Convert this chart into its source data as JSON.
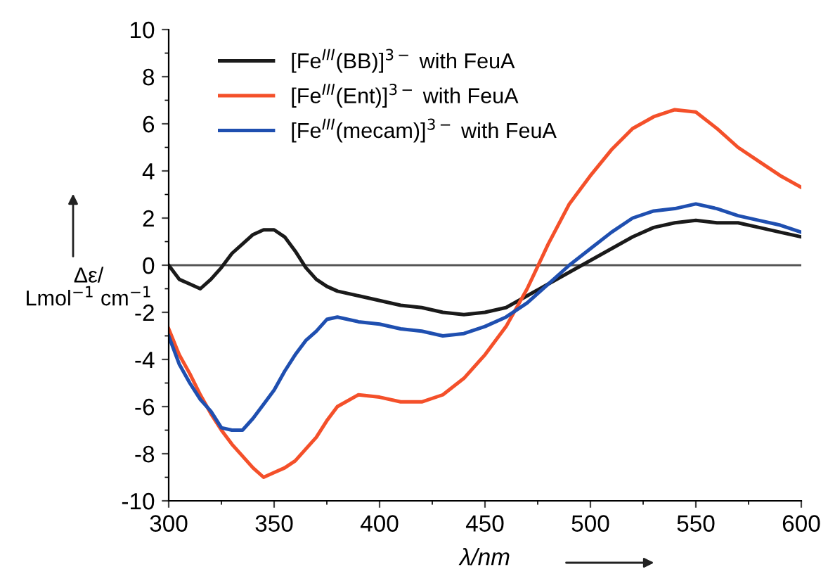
{
  "chart_data": {
    "type": "line",
    "xlabel": "λ/nm",
    "ylabel": "Δε/\nLmol$^{−1}$ cm$^{−1}$",
    "x": [
      300,
      305,
      310,
      315,
      320,
      325,
      330,
      335,
      340,
      345,
      350,
      355,
      360,
      365,
      370,
      375,
      380,
      390,
      400,
      410,
      420,
      430,
      440,
      450,
      460,
      470,
      480,
      490,
      500,
      510,
      520,
      530,
      540,
      550,
      560,
      570,
      580,
      590,
      600
    ],
    "series": [
      {
        "name": "[Fe$^{III}$(BB)]$^{3−}$ with FeuA",
        "color": "#1a1a1a",
        "values": [
          0.0,
          -0.6,
          -0.8,
          -1.0,
          -0.6,
          -0.1,
          0.5,
          0.9,
          1.3,
          1.5,
          1.5,
          1.2,
          0.6,
          -0.1,
          -0.6,
          -0.9,
          -1.1,
          -1.3,
          -1.5,
          -1.7,
          -1.8,
          -2.0,
          -2.1,
          -2.0,
          -1.8,
          -1.3,
          -0.8,
          -0.3,
          0.2,
          0.7,
          1.2,
          1.6,
          1.8,
          1.9,
          1.8,
          1.8,
          1.6,
          1.4,
          1.2
        ]
      },
      {
        "name": "[Fe$^{III}$(Ent)]$^{3−}$ with FeuA",
        "color": "#f4502a",
        "values": [
          -2.7,
          -3.8,
          -4.6,
          -5.5,
          -6.3,
          -7.0,
          -7.6,
          -8.1,
          -8.6,
          -9.0,
          -8.8,
          -8.6,
          -8.3,
          -7.8,
          -7.3,
          -6.6,
          -6.0,
          -5.5,
          -5.6,
          -5.8,
          -5.8,
          -5.5,
          -4.8,
          -3.8,
          -2.6,
          -1.0,
          0.9,
          2.6,
          3.8,
          4.9,
          5.8,
          6.3,
          6.6,
          6.5,
          5.8,
          5.0,
          4.4,
          3.8,
          3.3
        ]
      },
      {
        "name": "[Fe$^{III}$(mecam)]$^{3−}$ with FeuA",
        "color": "#1f4fb0",
        "values": [
          -3.0,
          -4.2,
          -5.0,
          -5.7,
          -6.2,
          -6.9,
          -7.0,
          -7.0,
          -6.5,
          -5.9,
          -5.3,
          -4.5,
          -3.8,
          -3.2,
          -2.8,
          -2.3,
          -2.2,
          -2.4,
          -2.5,
          -2.7,
          -2.8,
          -3.0,
          -2.9,
          -2.6,
          -2.2,
          -1.6,
          -0.8,
          0.0,
          0.7,
          1.4,
          2.0,
          2.3,
          2.4,
          2.6,
          2.4,
          2.1,
          1.9,
          1.7,
          1.4
        ]
      }
    ],
    "xlim": [
      300,
      600
    ],
    "ylim": [
      -10,
      10
    ],
    "xticks": [
      300,
      350,
      400,
      450,
      500,
      550,
      600
    ],
    "yticks": [
      -10,
      -8,
      -6,
      -4,
      -2,
      0,
      2,
      4,
      6,
      8,
      10
    ],
    "ref_lines": [
      {
        "axis": "y",
        "value": 0,
        "color": "#555555"
      }
    ],
    "grid": false,
    "legend": "top left",
    "marker": "none",
    "line_style": "solid"
  }
}
